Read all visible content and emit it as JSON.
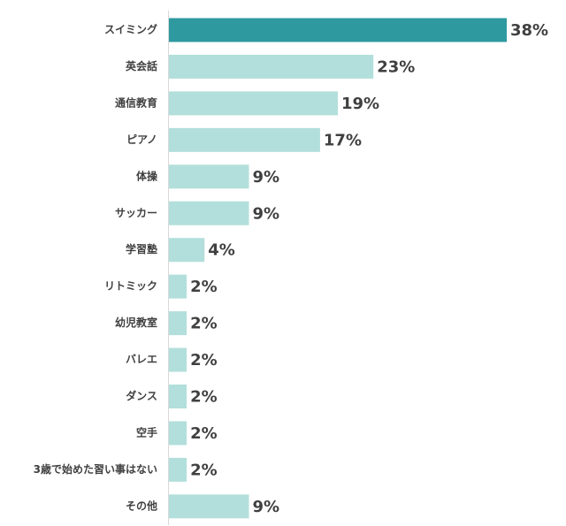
{
  "chart_data": {
    "type": "bar",
    "orientation": "horizontal",
    "categories": [
      "スイミング",
      "英会話",
      "通信教育",
      "ピアノ",
      "体操",
      "サッカー",
      "学習塾",
      "リトミック",
      "幼児教室",
      "バレエ",
      "ダンス",
      "空手",
      "3歳で始めた習い事はない",
      "その他"
    ],
    "values": [
      38,
      23,
      19,
      17,
      9,
      9,
      4,
      2,
      2,
      2,
      2,
      2,
      2,
      9
    ],
    "value_labels": [
      "38%",
      "23%",
      "19%",
      "17%",
      "9%",
      "9%",
      "4%",
      "2%",
      "2%",
      "2%",
      "2%",
      "2%",
      "2%",
      "9%"
    ],
    "colors": [
      "#2e9aa0",
      "#b2dfdb",
      "#b2dfdb",
      "#b2dfdb",
      "#b2dfdb",
      "#b2dfdb",
      "#b2dfdb",
      "#b2dfdb",
      "#b2dfdb",
      "#b2dfdb",
      "#b2dfdb",
      "#b2dfdb",
      "#b2dfdb",
      "#b2dfdb"
    ]
  }
}
